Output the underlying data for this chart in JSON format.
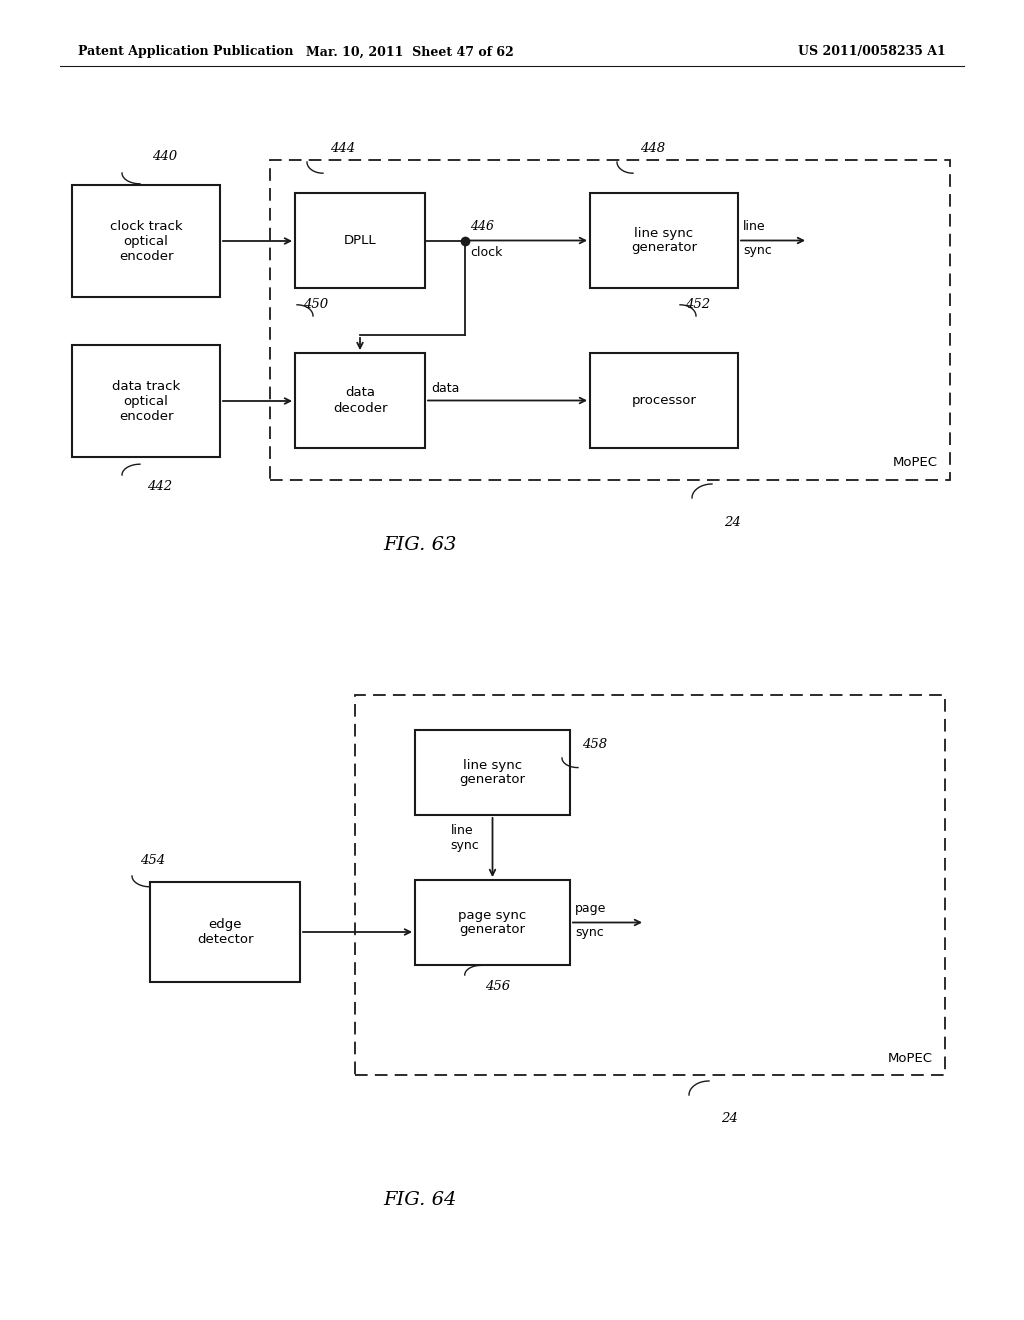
{
  "header_left": "Patent Application Publication",
  "header_mid": "Mar. 10, 2011  Sheet 47 of 62",
  "header_right": "US 2011/0058235 A1",
  "bg_color": "#ffffff",
  "line_color": "#1a1a1a",
  "fig63_label": "FIG. 63",
  "fig64_label": "FIG. 64"
}
